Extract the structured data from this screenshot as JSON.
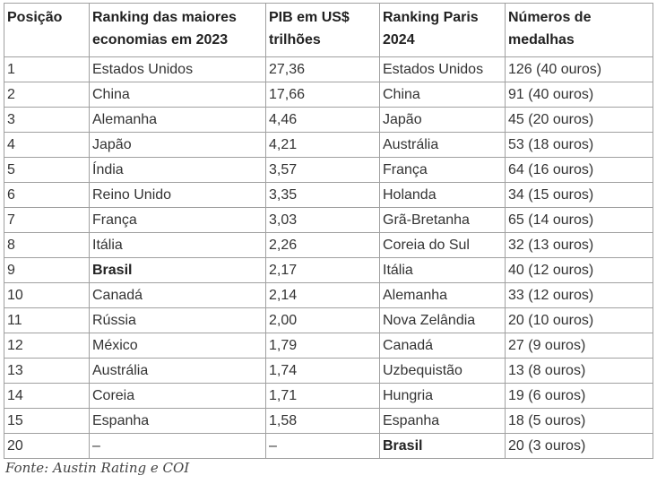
{
  "table": {
    "headers": [
      "Posição",
      "Ranking das maiores economias em 2023",
      "PIB em US$ trilhões",
      "Ranking Paris 2024",
      "Números de medalhas"
    ],
    "rows": [
      [
        "1",
        "Estados Unidos",
        "27,36",
        "Estados Unidos",
        "126 (40 ouros)"
      ],
      [
        "2",
        "China",
        "17,66",
        "China",
        "91 (40 ouros)"
      ],
      [
        "3",
        "Alemanha",
        "4,46",
        "Japão",
        "45 (20 ouros)"
      ],
      [
        "4",
        "Japão",
        "4,21",
        "Austrália",
        "53 (18 ouros)"
      ],
      [
        "5",
        "Índia",
        "3,57",
        "França",
        "64 (16 ouros)"
      ],
      [
        "6",
        "Reino Unido",
        "3,35",
        "Holanda",
        "34 (15 ouros)"
      ],
      [
        "7",
        "França",
        "3,03",
        "Grã-Bretanha",
        "65 (14 ouros)"
      ],
      [
        "8",
        "Itália",
        "2,26",
        "Coreia do Sul",
        "32 (13 ouros)"
      ],
      [
        "9",
        "Brasil",
        "2,17",
        "Itália",
        "40 (12 ouros)"
      ],
      [
        "10",
        "Canadá",
        "2,14",
        "Alemanha",
        "33 (12 ouros)"
      ],
      [
        "11",
        "Rússia",
        "2,00",
        "Nova Zelândia",
        "20 (10 ouros)"
      ],
      [
        "12",
        "México",
        "1,79",
        "Canadá",
        "27 (9 ouros)"
      ],
      [
        "13",
        "Austrália",
        "1,74",
        "Uzbequistão",
        "13 (8 ouros)"
      ],
      [
        "14",
        "Coreia",
        "1,71",
        "Hungria",
        "19 (6 ouros)"
      ],
      [
        "15",
        "Espanha",
        "1,58",
        "Espanha",
        "18 (5 ouros)"
      ],
      [
        "20",
        "–",
        "–",
        "Brasil",
        "20 (3 ouros)"
      ]
    ]
  },
  "source": "Fonte: Austin Rating e COI"
}
